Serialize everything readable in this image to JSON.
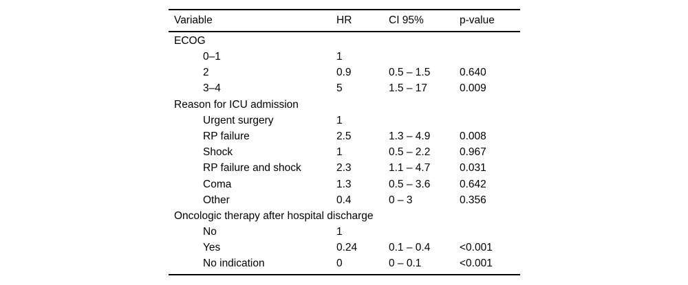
{
  "table": {
    "columns": [
      "Variable",
      "HR",
      "CI 95%",
      "p-value"
    ],
    "rows": [
      {
        "variable": "ECOG",
        "hr": "",
        "ci": "",
        "p": "",
        "section": true
      },
      {
        "variable": "0–1",
        "hr": "1",
        "ci": "",
        "p": "",
        "section": false
      },
      {
        "variable": "2",
        "hr": "0.9",
        "ci": "0.5 – 1.5",
        "p": "0.640",
        "section": false
      },
      {
        "variable": "3–4",
        "hr": "5",
        "ci": "1.5 – 17",
        "p": "0.009",
        "section": false
      },
      {
        "variable": "Reason for ICU admission",
        "hr": "",
        "ci": "",
        "p": "",
        "section": true
      },
      {
        "variable": "Urgent surgery",
        "hr": "1",
        "ci": "",
        "p": "",
        "section": false
      },
      {
        "variable": "RP failure",
        "hr": "2.5",
        "ci": "1.3 – 4.9",
        "p": "0.008",
        "section": false
      },
      {
        "variable": "Shock",
        "hr": "1",
        "ci": "0.5 – 2.2",
        "p": "0.967",
        "section": false
      },
      {
        "variable": "RP failure and shock",
        "hr": "2.3",
        "ci": "1.1 – 4.7",
        "p": "0.031",
        "section": false
      },
      {
        "variable": "Coma",
        "hr": "1.3",
        "ci": "0.5 – 3.6",
        "p": "0.642",
        "section": false
      },
      {
        "variable": "Other",
        "hr": "0.4",
        "ci": "0 – 3",
        "p": "0.356",
        "section": false
      },
      {
        "variable": "Oncologic therapy after hospital discharge",
        "hr": "",
        "ci": "",
        "p": "",
        "section": true
      },
      {
        "variable": "No",
        "hr": "1",
        "ci": "",
        "p": "",
        "section": false
      },
      {
        "variable": "Yes",
        "hr": "0.24",
        "ci": "0.1 – 0.4",
        "p": "<0.001",
        "section": false
      },
      {
        "variable": "No indication",
        "hr": "0",
        "ci": "0 – 0.1",
        "p": "<0.001",
        "section": false
      }
    ]
  }
}
